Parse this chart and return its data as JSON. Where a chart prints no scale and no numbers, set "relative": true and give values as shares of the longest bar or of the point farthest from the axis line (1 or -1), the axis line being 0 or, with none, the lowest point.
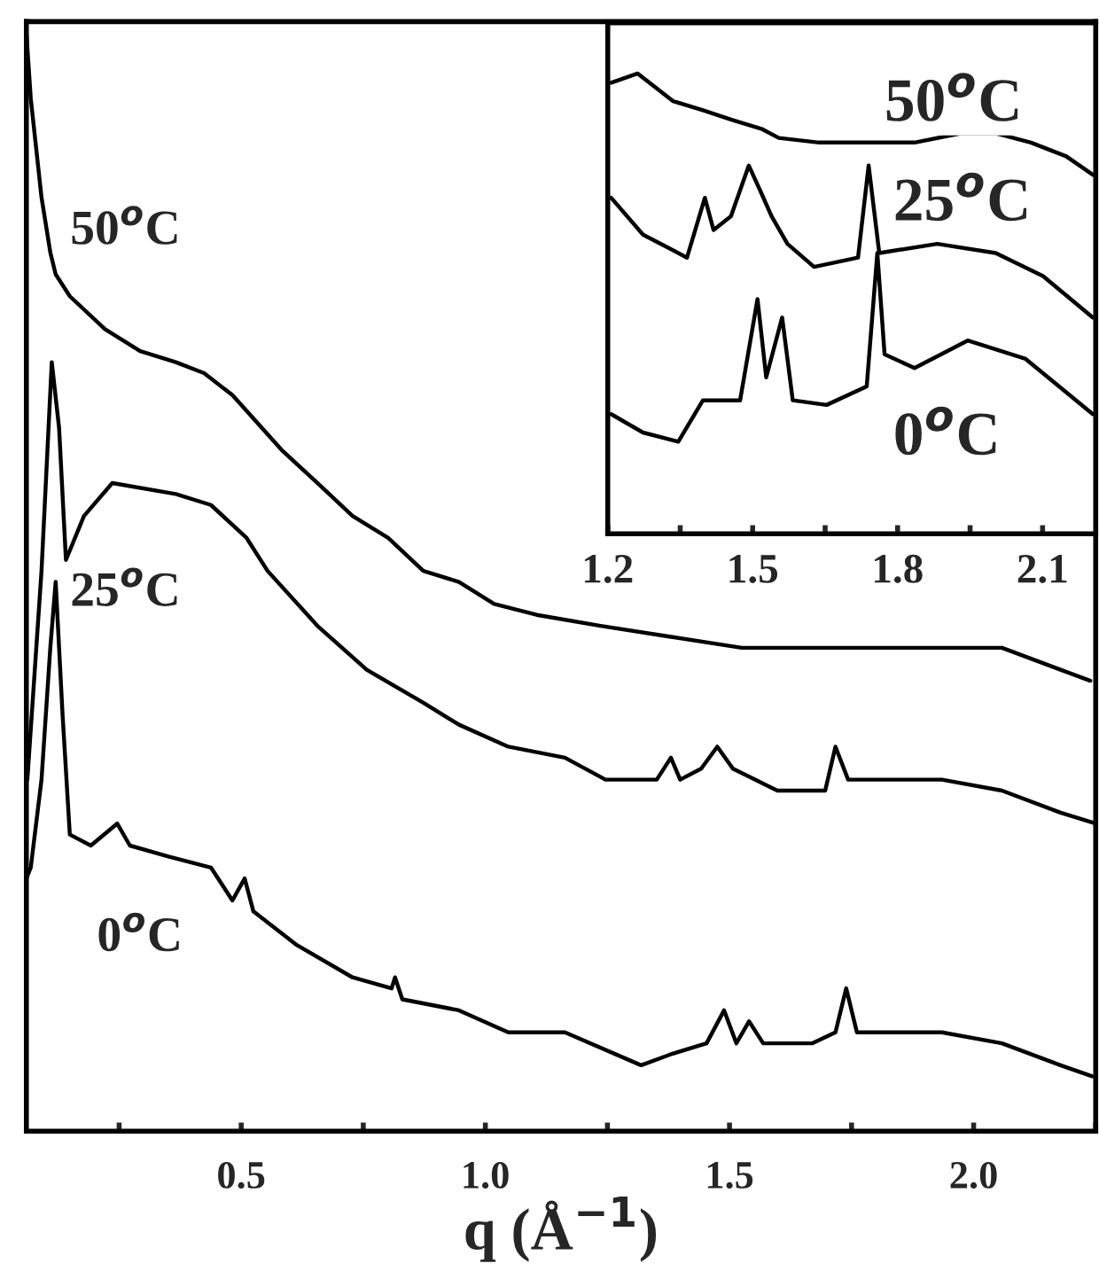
{
  "chart_data": [
    {
      "type": "line",
      "relative": true,
      "xlabel": "q (Å$^{−1}$)",
      "xlim": [
        0.06,
        2.25
      ],
      "tick_labels": "x",
      "line_style": "solid",
      "xticks": [
        {
          "value": 0.25,
          "label": null
        },
        {
          "value": 0.5,
          "label": "0.5"
        },
        {
          "value": 0.75,
          "label": null
        },
        {
          "value": 1.0,
          "label": "1.0"
        },
        {
          "value": 1.25,
          "label": null
        },
        {
          "value": 1.5,
          "label": "1.5"
        },
        {
          "value": 1.75,
          "label": null
        },
        {
          "value": 2.0,
          "label": "2.0"
        },
        {
          "value": 2.25,
          "label": null
        }
      ],
      "series": [
        {
          "name": "50$^{o}$C",
          "color": "#000000",
          "x": [
            0.06,
            0.069,
            0.091,
            0.109,
            0.12,
            0.149,
            0.221,
            0.293,
            0.366,
            0.424,
            0.482,
            0.583,
            0.656,
            0.728,
            0.801,
            0.873,
            0.946,
            1.018,
            1.105,
            1.236,
            1.38,
            1.525,
            1.743,
            1.986,
            2.058,
            2.178,
            2.239
          ],
          "values": [
            1.0,
            0.94,
            0.85,
            0.8,
            0.78,
            0.76,
            0.73,
            0.71,
            0.7,
            0.69,
            0.67,
            0.62,
            0.59,
            0.56,
            0.54,
            0.51,
            0.5,
            0.48,
            0.47,
            0.46,
            0.45,
            0.44,
            0.44,
            0.44,
            0.44,
            0.42,
            0.41
          ]
        },
        {
          "name": "25$^{o}$C",
          "color": "#000000",
          "x": [
            0.062,
            0.091,
            0.112,
            0.127,
            0.141,
            0.178,
            0.236,
            0.366,
            0.438,
            0.511,
            0.554,
            0.656,
            0.757,
            0.873,
            0.946,
            1.047,
            1.163,
            1.246,
            1.351,
            1.38,
            1.399,
            1.442,
            1.475,
            1.507,
            1.598,
            1.696,
            1.717,
            1.743,
            1.815,
            1.935,
            2.058,
            2.178,
            2.25
          ],
          "values": [
            0.32,
            0.51,
            0.7,
            0.64,
            0.52,
            0.56,
            0.59,
            0.58,
            0.57,
            0.54,
            0.51,
            0.46,
            0.42,
            0.39,
            0.37,
            0.35,
            0.34,
            0.32,
            0.32,
            0.34,
            0.32,
            0.33,
            0.35,
            0.33,
            0.31,
            0.31,
            0.35,
            0.32,
            0.32,
            0.32,
            0.31,
            0.29,
            0.28
          ]
        },
        {
          "name": "0$^{o}$C",
          "color": "#000000",
          "x": [
            0.06,
            0.069,
            0.091,
            0.109,
            0.12,
            0.134,
            0.149,
            0.192,
            0.246,
            0.272,
            0.351,
            0.438,
            0.482,
            0.507,
            0.525,
            0.612,
            0.728,
            0.808,
            0.815,
            0.83,
            0.946,
            1.047,
            1.163,
            1.319,
            1.38,
            1.453,
            1.489,
            1.514,
            1.54,
            1.569,
            1.67,
            1.717,
            1.739,
            1.761,
            1.935,
            2.058,
            2.178,
            2.243
          ],
          "values": [
            0.23,
            0.24,
            0.32,
            0.44,
            0.5,
            0.38,
            0.27,
            0.26,
            0.28,
            0.26,
            0.25,
            0.24,
            0.21,
            0.23,
            0.2,
            0.17,
            0.14,
            0.13,
            0.14,
            0.12,
            0.11,
            0.09,
            0.09,
            0.06,
            0.07,
            0.08,
            0.11,
            0.08,
            0.1,
            0.08,
            0.08,
            0.09,
            0.13,
            0.09,
            0.09,
            0.08,
            0.06,
            0.05
          ]
        }
      ]
    },
    {
      "type": "line",
      "relative": true,
      "xlim": [
        1.2,
        2.21
      ],
      "tick_labels": "x",
      "line_style": "solid",
      "xticks": [
        1.2,
        {
          "value": 1.35,
          "label": null
        },
        1.5,
        {
          "value": 1.65,
          "label": null
        },
        1.8,
        {
          "value": 1.95,
          "label": null
        },
        2.1
      ],
      "series": [
        {
          "name": "50$^{o}$C",
          "color": "#000000",
          "x": [
            1.207,
            1.262,
            1.335,
            1.397,
            1.455,
            1.518,
            1.554,
            1.638,
            1.736,
            1.835,
            1.93,
            2.003,
            2.076,
            2.149,
            2.204
          ],
          "values": [
            0.98,
            1.0,
            0.94,
            0.92,
            0.9,
            0.88,
            0.86,
            0.85,
            0.85,
            0.85,
            0.87,
            0.87,
            0.85,
            0.82,
            0.78
          ]
        },
        {
          "name": "25$^{o}$C",
          "color": "#000000",
          "x": [
            1.207,
            1.273,
            1.364,
            1.401,
            1.419,
            1.455,
            1.492,
            1.518,
            1.539,
            1.572,
            1.627,
            1.718,
            1.74,
            1.762,
            1.882,
            2.003,
            2.101,
            2.204
          ],
          "values": [
            0.73,
            0.65,
            0.6,
            0.73,
            0.66,
            0.69,
            0.8,
            0.74,
            0.69,
            0.63,
            0.58,
            0.6,
            0.8,
            0.61,
            0.63,
            0.61,
            0.56,
            0.47
          ]
        },
        {
          "name": "0$^{o}$C",
          "color": "#000000",
          "x": [
            1.207,
            1.273,
            1.346,
            1.397,
            1.474,
            1.51,
            1.528,
            1.561,
            1.583,
            1.653,
            1.736,
            1.758,
            1.773,
            1.835,
            1.945,
            2.065,
            2.204
          ],
          "values": [
            0.26,
            0.22,
            0.2,
            0.29,
            0.29,
            0.51,
            0.34,
            0.47,
            0.29,
            0.28,
            0.32,
            0.61,
            0.39,
            0.36,
            0.42,
            0.38,
            0.26
          ]
        }
      ]
    }
  ]
}
